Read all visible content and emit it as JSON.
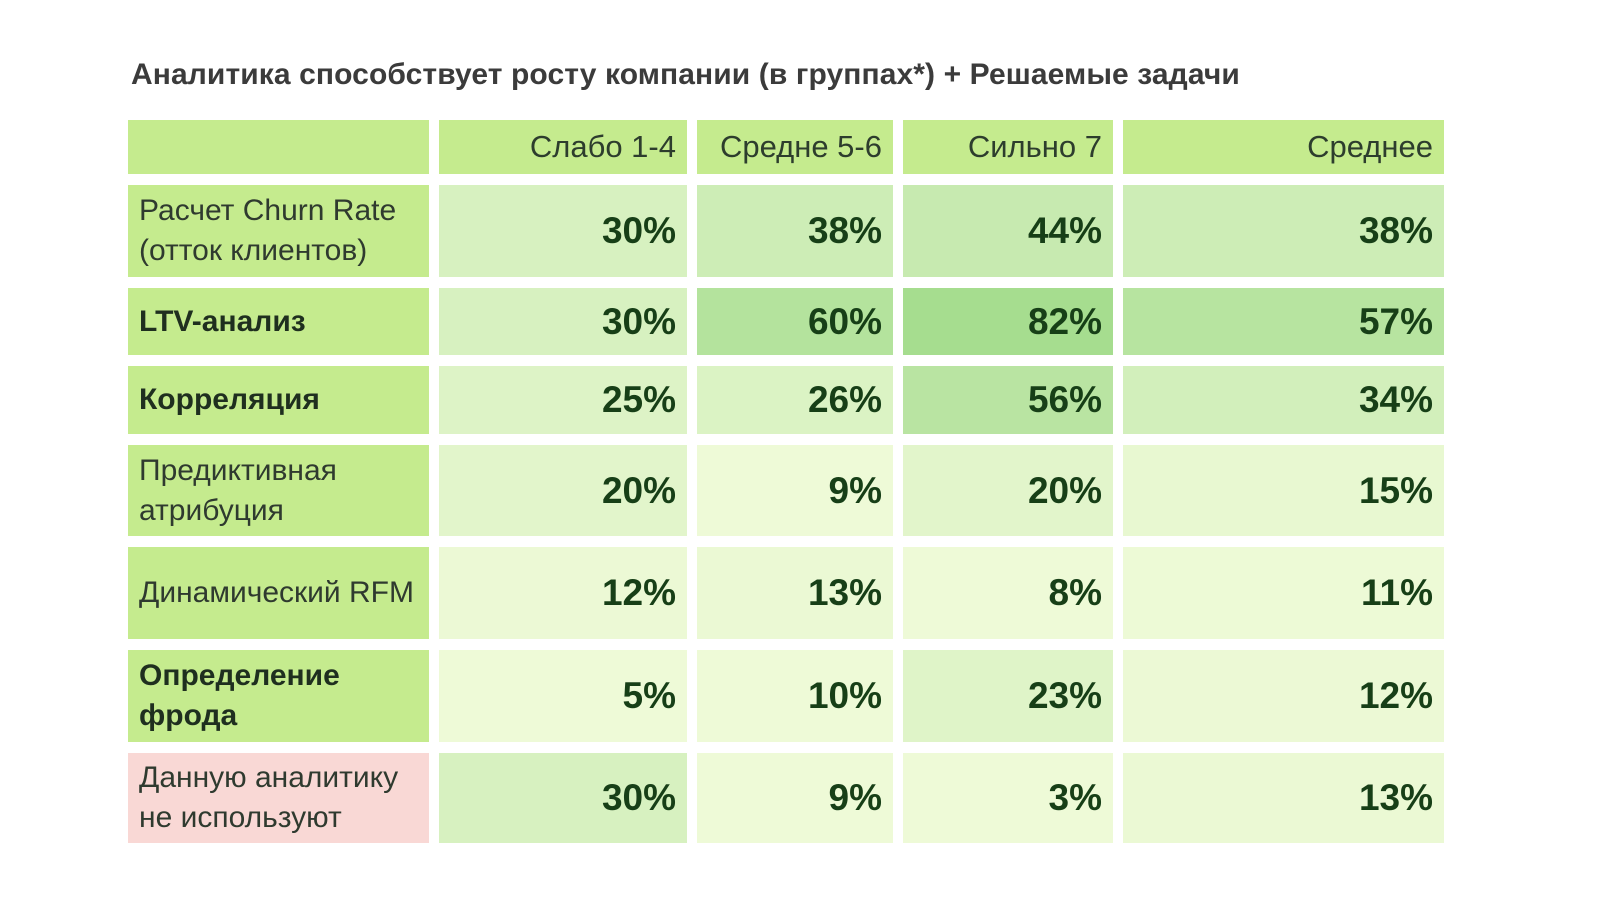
{
  "title": "Аналитика способствует росту компании (в группах*) + Решаемые задачи",
  "colors": {
    "header_bg": "#c5eb8e",
    "none_row_bg": "#f9d8d5",
    "scale_low": "#eefad7",
    "scale_high": "#a6dd8f"
  },
  "chart_data": {
    "type": "table",
    "title": "Аналитика способствует росту компании (в группах*) + Решаемые задачи",
    "columns": [
      "",
      "Слабо 1-4",
      "Средне 5-6",
      "Сильно 7",
      "Среднее"
    ],
    "rows": [
      {
        "label": "Расчет Churn Rate (отток клиентов)",
        "bold": false,
        "values": [
          30,
          38,
          44,
          38
        ],
        "display": [
          "30%",
          "38%",
          "44%",
          "38%"
        ]
      },
      {
        "label": "LTV-анализ",
        "bold": true,
        "values": [
          30,
          60,
          82,
          57
        ],
        "display": [
          "30%",
          "60%",
          "82%",
          "57%"
        ]
      },
      {
        "label": "Корреляция",
        "bold": true,
        "values": [
          25,
          26,
          56,
          34
        ],
        "display": [
          "25%",
          "26%",
          "56%",
          "34%"
        ]
      },
      {
        "label": "Предиктивная атрибуция",
        "bold": false,
        "values": [
          20,
          9,
          20,
          15
        ],
        "display": [
          "20%",
          "9%",
          "20%",
          "15%"
        ]
      },
      {
        "label": "Динамический RFM",
        "bold": false,
        "values": [
          12,
          13,
          8,
          11
        ],
        "display": [
          "12%",
          "13%",
          "8%",
          "11%"
        ]
      },
      {
        "label": "Определение фрода",
        "bold": true,
        "values": [
          5,
          10,
          23,
          12
        ],
        "display": [
          "5%",
          "10%",
          "23%",
          "12%"
        ]
      },
      {
        "label": "Данную аналитику не используют",
        "bold": false,
        "highlight": "none",
        "values": [
          30,
          9,
          3,
          13
        ],
        "display": [
          "30%",
          "9%",
          "3%",
          "13%"
        ]
      }
    ]
  }
}
